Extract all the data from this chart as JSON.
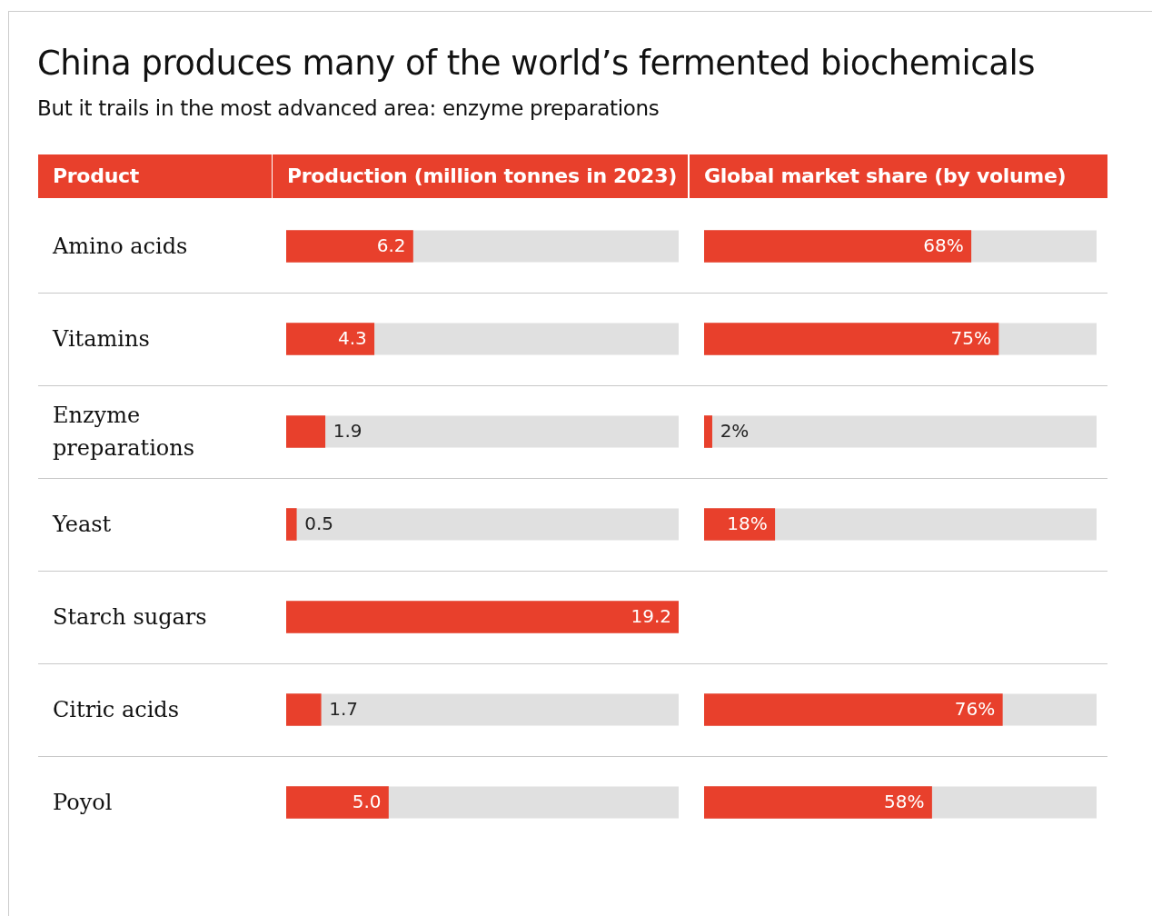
{
  "chart_data": [
    {
      "type": "bar",
      "orientation": "horizontal",
      "title": "China produces many of the world’s fermented biochemicals",
      "subtitle": "But it trails in the most advanced area: enzyme preparations",
      "ylabel": "Product",
      "xlabel": "Production (million tonnes in 2023)",
      "categories": [
        "Amino acids",
        "Vitamins",
        "Enzyme preparations",
        "Yeast",
        "Starch sugars",
        "Citric acids",
        "Poyol"
      ],
      "values": [
        6.2,
        4.3,
        1.9,
        0.5,
        19.2,
        1.7,
        5.0
      ],
      "value_labels": [
        "6.2",
        "4.3",
        "1.9",
        "0.5",
        "19.2",
        "1.7",
        "5.0"
      ],
      "color": "#e8402c",
      "xlim": [
        0,
        19.2
      ],
      "tick_labels": "y",
      "legend": false
    },
    {
      "type": "bar",
      "orientation": "horizontal",
      "xlabel": "Global market share (by volume)",
      "categories": [
        null,
        null,
        null,
        null,
        null,
        null,
        null
      ],
      "values": [
        68,
        75,
        2,
        18,
        null,
        76,
        58
      ],
      "value_labels": [
        "68%",
        "75%",
        "2%",
        "18%",
        null,
        "76%",
        "58%"
      ],
      "color": "#e8402c",
      "xlim": [
        0,
        100
      ],
      "tick_labels": false,
      "legend": false
    }
  ]
}
